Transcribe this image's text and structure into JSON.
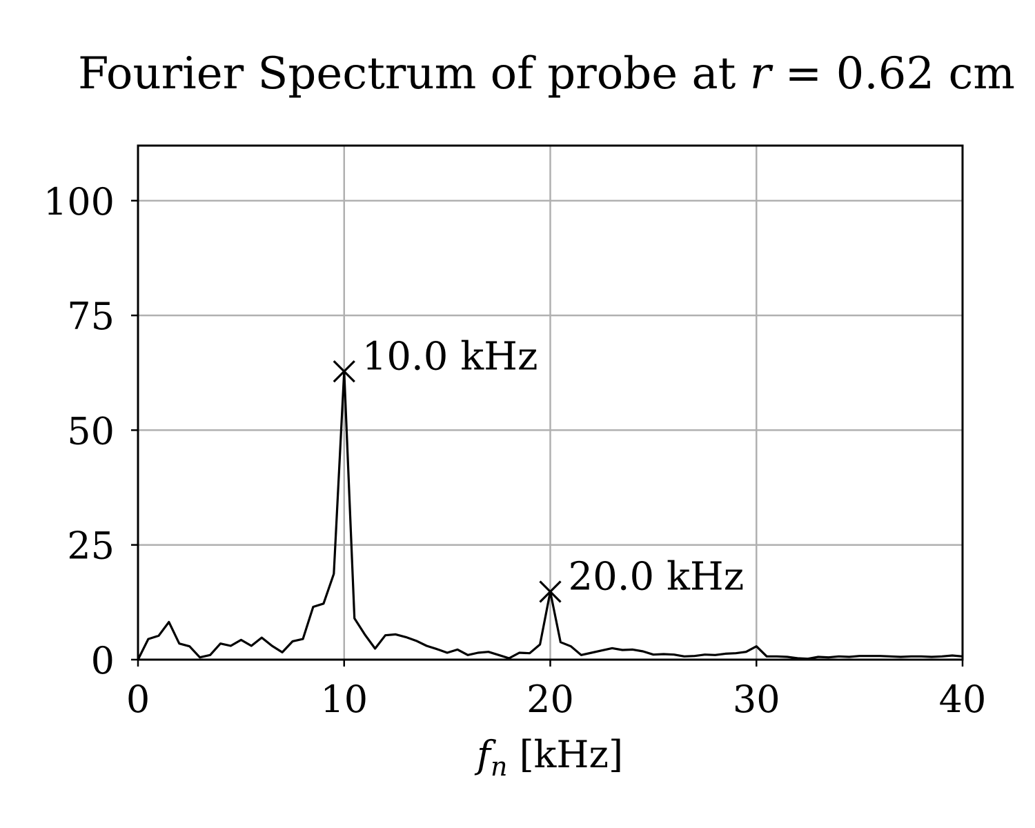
{
  "chart_data": {
    "type": "line",
    "title": {
      "prefix": "Fourier Spectrum of probe at ",
      "var": "r",
      "suffix": " = 0.62 cm"
    },
    "xlabel": {
      "var": "f",
      "sub": "n",
      "unit": " [kHz]"
    },
    "ylabel": "",
    "xlim": [
      0,
      40
    ],
    "ylim": [
      0,
      112
    ],
    "xticks": [
      0,
      10,
      20,
      30,
      40
    ],
    "yticks": [
      0,
      25,
      50,
      75,
      100
    ],
    "grid": true,
    "line_color": "#000000",
    "grid_color": "#b0b0b0",
    "series": [
      {
        "x": [
          0,
          0.5,
          1,
          1.5,
          2,
          2.5,
          3,
          3.5,
          4,
          4.5,
          5,
          5.5,
          6,
          6.5,
          7,
          7.5,
          8,
          8.5,
          9,
          9.5,
          10,
          10.5,
          11,
          11.5,
          12,
          12.5,
          13,
          13.5,
          14,
          14.5,
          15,
          15.5,
          16,
          16.5,
          17,
          17.5,
          18,
          18.5,
          19,
          19.5,
          20,
          20.5,
          21,
          21.5,
          22,
          22.5,
          23,
          23.5,
          24,
          24.5,
          25,
          25.5,
          26,
          26.5,
          27,
          27.5,
          28,
          28.5,
          29,
          29.5,
          30,
          30.5,
          31,
          31.5,
          32,
          32.5,
          33,
          33.5,
          34,
          34.5,
          35,
          35.5,
          36,
          36.5,
          37,
          37.5,
          38,
          38.5,
          39,
          39.5,
          40
        ],
        "y": [
          0,
          4.5,
          5.2,
          8.2,
          3.5,
          2.9,
          0.5,
          1.0,
          3.5,
          3.0,
          4.3,
          3.0,
          4.8,
          3.0,
          1.6,
          4.0,
          4.5,
          11.5,
          12.2,
          18.7,
          62.8,
          9.0,
          5.5,
          2.4,
          5.3,
          5.5,
          4.9,
          4.1,
          3.0,
          2.3,
          1.5,
          2.2,
          1.0,
          1.5,
          1.7,
          1.0,
          0.3,
          1.5,
          1.4,
          3.3,
          14.8,
          3.8,
          2.9,
          1.0,
          1.5,
          2.0,
          2.5,
          2.1,
          2.2,
          1.8,
          1.1,
          1.2,
          1.1,
          0.7,
          0.8,
          1.1,
          1.0,
          1.3,
          1.4,
          1.7,
          2.9,
          0.7,
          0.7,
          0.6,
          0.3,
          0.2,
          0.6,
          0.5,
          0.7,
          0.6,
          0.8,
          0.8,
          0.8,
          0.7,
          0.6,
          0.7,
          0.7,
          0.6,
          0.7,
          0.9,
          0.7
        ]
      }
    ],
    "annotations": [
      {
        "x": 10.0,
        "y": 62.8,
        "label": "10.0 kHz",
        "marker": "x"
      },
      {
        "x": 20.0,
        "y": 14.8,
        "label": "20.0 kHz",
        "marker": "x"
      }
    ]
  }
}
